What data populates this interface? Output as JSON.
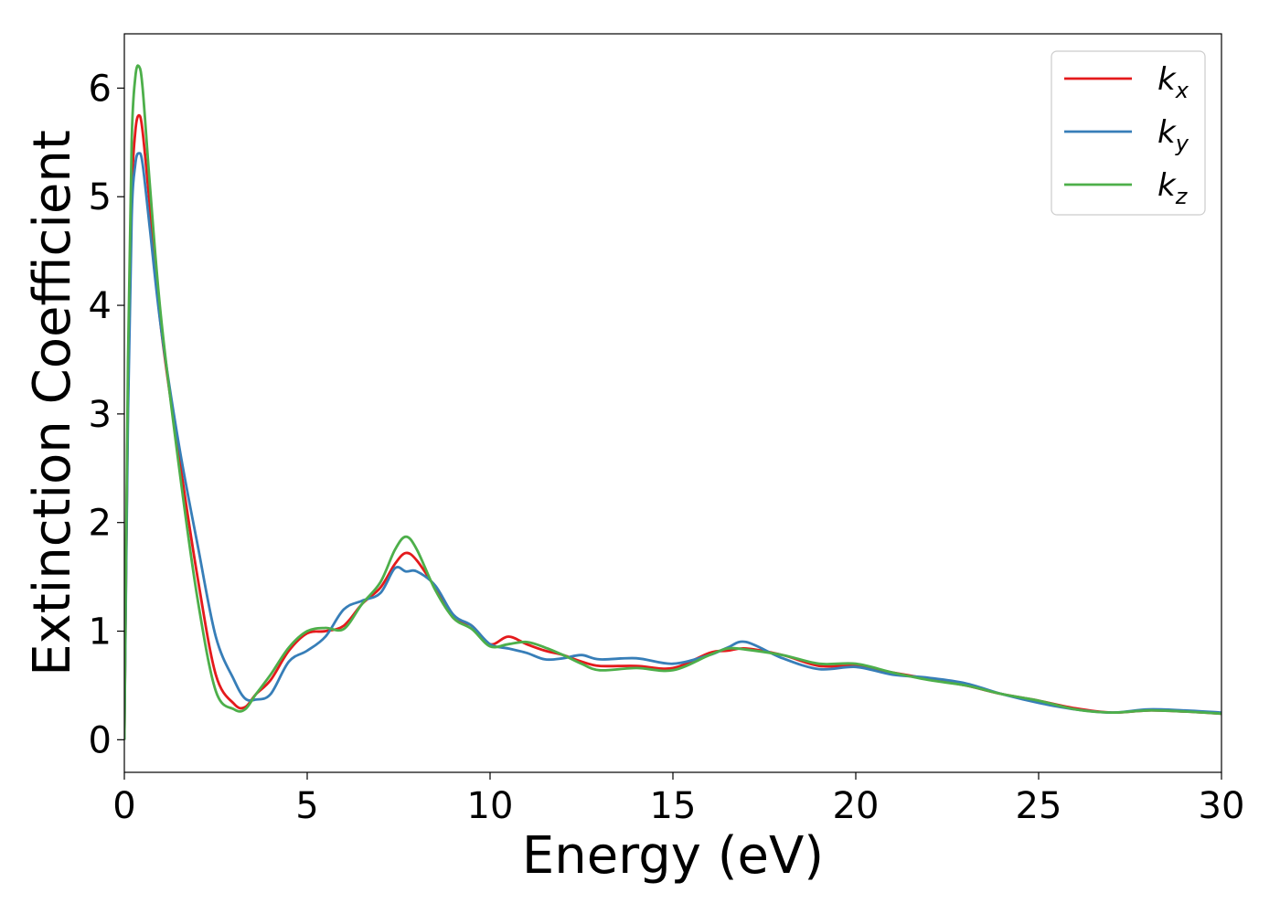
{
  "chart_data": {
    "type": "line",
    "xlabel": "Energy (eV)",
    "ylabel": "Extinction Coefficient",
    "xlim": [
      0,
      30
    ],
    "ylim": [
      -0.3,
      6.5
    ],
    "xticks": [
      0,
      5,
      10,
      15,
      20,
      25,
      30
    ],
    "yticks": [
      0,
      1,
      2,
      3,
      4,
      5,
      6
    ],
    "grid": false,
    "legend_position": "top-right",
    "series": [
      {
        "name": "k_x",
        "legend_base": "k",
        "legend_sub": "x",
        "color": "#e41a1c",
        "x": [
          0,
          0.1,
          0.2,
          0.3,
          0.4,
          0.5,
          0.7,
          1.0,
          1.5,
          2.0,
          2.5,
          3.0,
          3.3,
          3.6,
          4.0,
          4.5,
          5.0,
          5.5,
          6.0,
          6.5,
          7.0,
          7.4,
          7.7,
          8.0,
          8.5,
          9.0,
          9.5,
          10.0,
          10.5,
          11.0,
          11.5,
          12.0,
          12.5,
          13.0,
          14.0,
          15.0,
          16.0,
          16.5,
          17.0,
          18.0,
          19.0,
          20.0,
          21.0,
          22.0,
          23.0,
          24.0,
          25.0,
          26.0,
          27.0,
          28.0,
          29.0,
          30.0
        ],
        "y": [
          0.0,
          3.2,
          5.0,
          5.6,
          5.75,
          5.6,
          4.9,
          3.8,
          2.6,
          1.5,
          0.6,
          0.33,
          0.3,
          0.42,
          0.55,
          0.82,
          0.98,
          1.0,
          1.05,
          1.25,
          1.4,
          1.62,
          1.72,
          1.65,
          1.4,
          1.12,
          1.05,
          0.88,
          0.95,
          0.88,
          0.82,
          0.78,
          0.72,
          0.68,
          0.68,
          0.66,
          0.8,
          0.82,
          0.84,
          0.78,
          0.68,
          0.68,
          0.62,
          0.56,
          0.5,
          0.42,
          0.36,
          0.29,
          0.25,
          0.27,
          0.26,
          0.24
        ]
      },
      {
        "name": "k_y",
        "legend_base": "k",
        "legend_sub": "y",
        "color": "#377eb8",
        "x": [
          0,
          0.1,
          0.2,
          0.3,
          0.4,
          0.5,
          0.7,
          1.0,
          1.5,
          2.0,
          2.5,
          3.0,
          3.3,
          3.6,
          4.0,
          4.5,
          5.0,
          5.5,
          6.0,
          6.5,
          7.0,
          7.4,
          7.7,
          8.0,
          8.5,
          9.0,
          9.5,
          10.0,
          10.5,
          11.0,
          11.5,
          12.0,
          12.5,
          13.0,
          14.0,
          15.0,
          16.0,
          16.5,
          17.0,
          18.0,
          19.0,
          20.0,
          21.0,
          22.0,
          23.0,
          24.0,
          25.0,
          26.0,
          27.0,
          28.0,
          29.0,
          30.0
        ],
        "y": [
          0.0,
          3.0,
          4.8,
          5.3,
          5.4,
          5.3,
          4.7,
          3.8,
          2.7,
          1.8,
          0.95,
          0.55,
          0.38,
          0.37,
          0.42,
          0.72,
          0.82,
          0.95,
          1.2,
          1.28,
          1.35,
          1.58,
          1.55,
          1.55,
          1.42,
          1.15,
          1.05,
          0.88,
          0.84,
          0.8,
          0.74,
          0.75,
          0.78,
          0.74,
          0.75,
          0.7,
          0.78,
          0.85,
          0.9,
          0.75,
          0.65,
          0.67,
          0.6,
          0.57,
          0.52,
          0.42,
          0.34,
          0.28,
          0.25,
          0.28,
          0.27,
          0.25
        ]
      },
      {
        "name": "k_z",
        "legend_base": "k",
        "legend_sub": "z",
        "color": "#4daf4a",
        "x": [
          0,
          0.1,
          0.2,
          0.3,
          0.4,
          0.5,
          0.7,
          1.0,
          1.5,
          2.0,
          2.5,
          3.0,
          3.3,
          3.6,
          4.0,
          4.5,
          5.0,
          5.5,
          6.0,
          6.5,
          7.0,
          7.4,
          7.7,
          8.0,
          8.5,
          9.0,
          9.5,
          10.0,
          10.5,
          11.0,
          11.5,
          12.0,
          12.5,
          13.0,
          14.0,
          15.0,
          16.0,
          16.5,
          17.0,
          18.0,
          19.0,
          20.0,
          21.0,
          22.0,
          23.0,
          24.0,
          25.0,
          26.0,
          27.0,
          28.0,
          29.0,
          30.0
        ],
        "y": [
          0.0,
          3.5,
          5.5,
          6.1,
          6.2,
          6.0,
          5.1,
          3.9,
          2.5,
          1.3,
          0.45,
          0.28,
          0.28,
          0.42,
          0.6,
          0.85,
          1.0,
          1.03,
          1.02,
          1.25,
          1.45,
          1.75,
          1.87,
          1.75,
          1.38,
          1.12,
          1.02,
          0.86,
          0.88,
          0.9,
          0.85,
          0.78,
          0.7,
          0.64,
          0.66,
          0.64,
          0.78,
          0.84,
          0.83,
          0.78,
          0.7,
          0.7,
          0.62,
          0.55,
          0.5,
          0.42,
          0.36,
          0.28,
          0.25,
          0.27,
          0.26,
          0.24
        ]
      }
    ]
  }
}
